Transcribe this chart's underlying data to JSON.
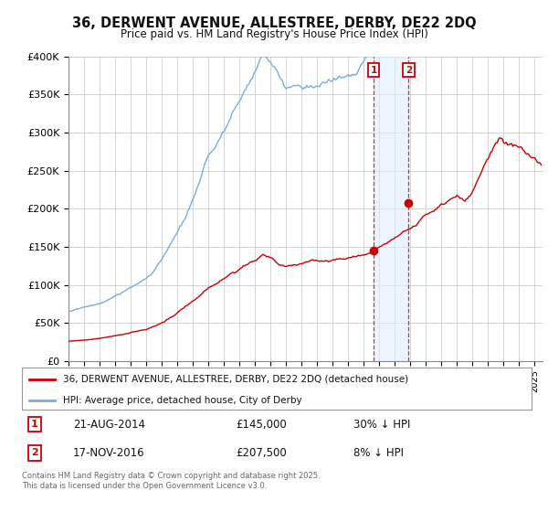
{
  "title": "36, DERWENT AVENUE, ALLESTREE, DERBY, DE22 2DQ",
  "subtitle": "Price paid vs. HM Land Registry's House Price Index (HPI)",
  "ylim": [
    0,
    400000
  ],
  "xlim_start": 1995.0,
  "xlim_end": 2025.5,
  "sale1_x": 2014.64,
  "sale1_y": 145000,
  "sale1_label": "1",
  "sale1_date": "21-AUG-2014",
  "sale1_price": "£145,000",
  "sale1_note": "30% ↓ HPI",
  "sale2_x": 2016.88,
  "sale2_y": 207500,
  "sale2_label": "2",
  "sale2_date": "17-NOV-2016",
  "sale2_price": "£207,500",
  "sale2_note": "8% ↓ HPI",
  "line_property_color": "#cc0000",
  "line_hpi_color": "#7aaddb",
  "marker_box_color": "#cc0000",
  "vline_color": "#cc0000",
  "vband_color": "#ddeeff",
  "legend_line1": "36, DERWENT AVENUE, ALLESTREE, DERBY, DE22 2DQ (detached house)",
  "legend_line2": "HPI: Average price, detached house, City of Derby",
  "footer": "Contains HM Land Registry data © Crown copyright and database right 2025.\nThis data is licensed under the Open Government Licence v3.0.",
  "background_color": "#ffffff",
  "grid_color": "#cccccc"
}
